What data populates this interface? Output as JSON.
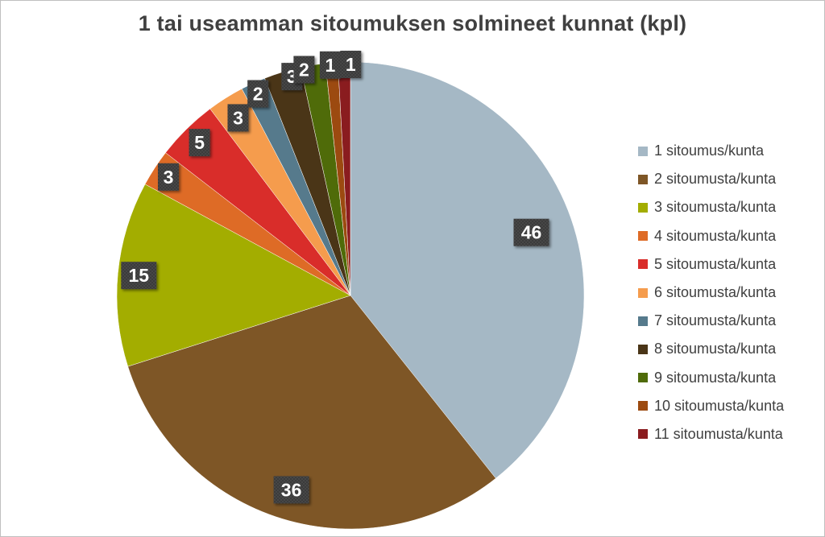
{
  "chart_data": {
    "type": "pie",
    "title": "1 tai useamman sitoumuksen solmineet kunnat (kpl)",
    "categories": [
      "1 sitoumus/kunta",
      "2 sitoumusta/kunta",
      "3 sitoumusta/kunta",
      "4 sitoumusta/kunta",
      "5 sitoumusta/kunta",
      "6 sitoumusta/kunta",
      "7 sitoumusta/kunta",
      "8 sitoumusta/kunta",
      "9 sitoumusta/kunta",
      "10 sitoumusta/kunta",
      "11 sitoumusta/kunta"
    ],
    "values": [
      46,
      36,
      15,
      3,
      5,
      3,
      2,
      3,
      2,
      1,
      1
    ],
    "colors": [
      "#a5b8c5",
      "#7e5626",
      "#a3ad00",
      "#de6b26",
      "#d92d2a",
      "#f59c4d",
      "#567a8c",
      "#4a3517",
      "#4f6b09",
      "#9c4a10",
      "#8a1c1f"
    ],
    "legend_position": "right",
    "data_label_style": "dark-box"
  }
}
